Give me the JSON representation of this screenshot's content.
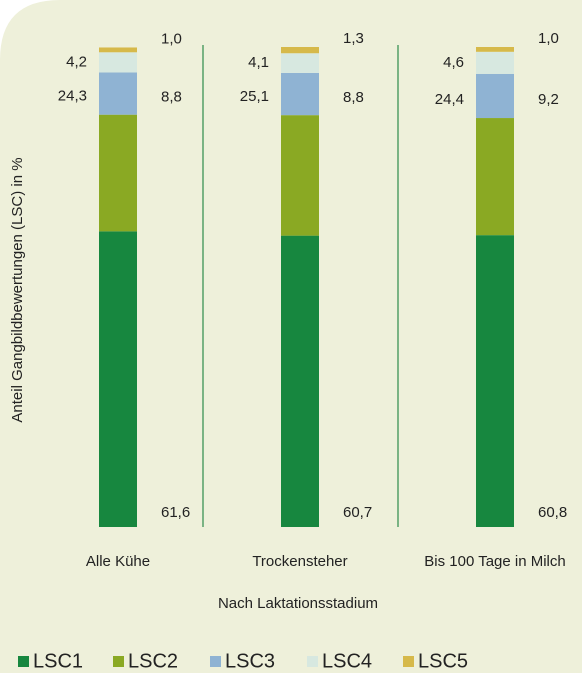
{
  "chart_data": {
    "type": "stacked_bar",
    "y_label": "Anteil Gangbildbewertungen (LSC) in %",
    "x_label": "Nach Laktationsstadium",
    "categories": [
      "Alle Kühe",
      "Trockensteher",
      "Bis 100 Tage in Milch"
    ],
    "ylim": [
      0,
      100
    ],
    "series": [
      {
        "name": "LSC1",
        "color": "#17873f",
        "values": [
          61.6,
          60.7,
          60.8
        ],
        "value_labels": [
          "61,6",
          "60,7",
          "60,8"
        ]
      },
      {
        "name": "LSC2",
        "color": "#8aa923",
        "values": [
          24.3,
          25.1,
          24.4
        ],
        "value_labels": [
          "24,3",
          "25,1",
          "24,4"
        ]
      },
      {
        "name": "LSC3",
        "color": "#8fb3d3",
        "values": [
          8.8,
          8.8,
          9.2
        ],
        "value_labels": [
          "8,8",
          "8,8",
          "9,2"
        ]
      },
      {
        "name": "LSC4",
        "color": "#d7e8e0",
        "values": [
          4.2,
          4.1,
          4.6
        ],
        "value_labels": [
          "4,2",
          "4,1",
          "4,6"
        ]
      },
      {
        "name": "LSC5",
        "color": "#d6b94a",
        "values": [
          1.0,
          1.3,
          1.0
        ],
        "value_labels": [
          "1,0",
          "1,3",
          "1,0"
        ]
      }
    ]
  }
}
